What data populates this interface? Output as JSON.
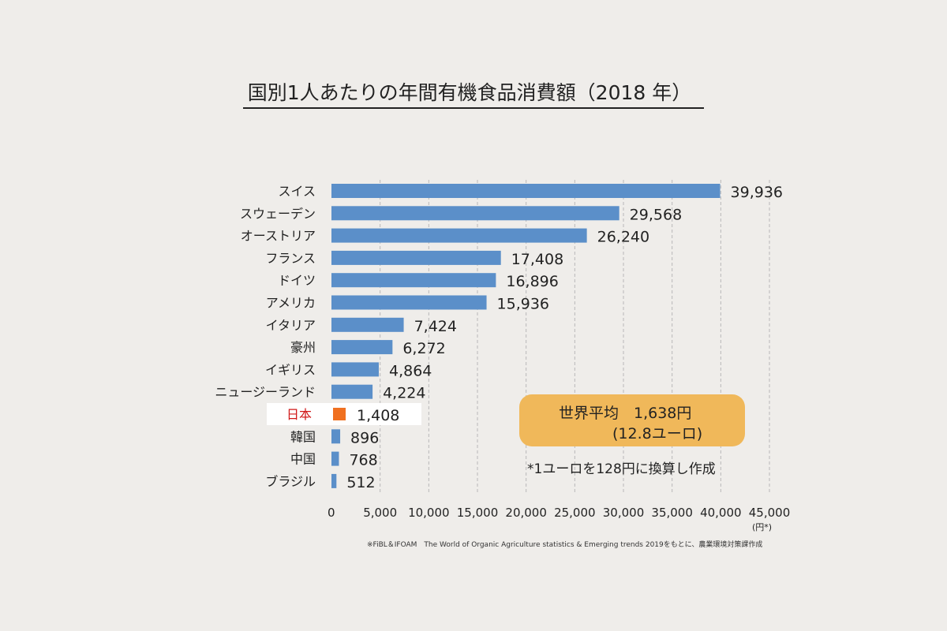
{
  "chart_data": {
    "type": "bar",
    "orientation": "horizontal",
    "title": "国別1人あたりの年間有機食品消費額（2018 年）",
    "categories": [
      "スイス",
      "スウェーデン",
      "オーストリア",
      "フランス",
      "ドイツ",
      "アメリカ",
      "イタリア",
      "豪州",
      "イギリス",
      "ニュージーランド",
      "日本",
      "韓国",
      "中国",
      "ブラジル"
    ],
    "values": [
      39936,
      29568,
      26240,
      17408,
      16896,
      15936,
      7424,
      6272,
      4864,
      4224,
      1408,
      896,
      768,
      512
    ],
    "value_labels": [
      "39,936",
      "29,568",
      "26,240",
      "17,408",
      "16,896",
      "15,936",
      "7,424",
      "6,272",
      "4,864",
      "4,224",
      "1,408",
      "896",
      "768",
      "512"
    ],
    "highlight_category": "日本",
    "xlim": [
      0,
      45000
    ],
    "xticks": [
      "0",
      "5,000",
      "10,000",
      "15,000",
      "20,000",
      "25,000",
      "30,000",
      "35,000",
      "40,000",
      "45,000"
    ],
    "xunit": "(円*)",
    "grid": "vertical dashed",
    "colors": {
      "bar": "#5b8fc9",
      "highlight_bar": "#f07020",
      "highlight_label": "#d01818",
      "avg_box": "#f0b85a"
    }
  },
  "annotations": {
    "world_average_line1": "世界平均　1,638円",
    "world_average_line2": "(12.8ユーロ)",
    "conversion_note": "*1ユーロを128円に換算し作成",
    "source": "※FiBL＆IFOAM　The World of Organic Agriculture statistics & Emerging trends 2019をもとに、農業環境対策課作成"
  }
}
